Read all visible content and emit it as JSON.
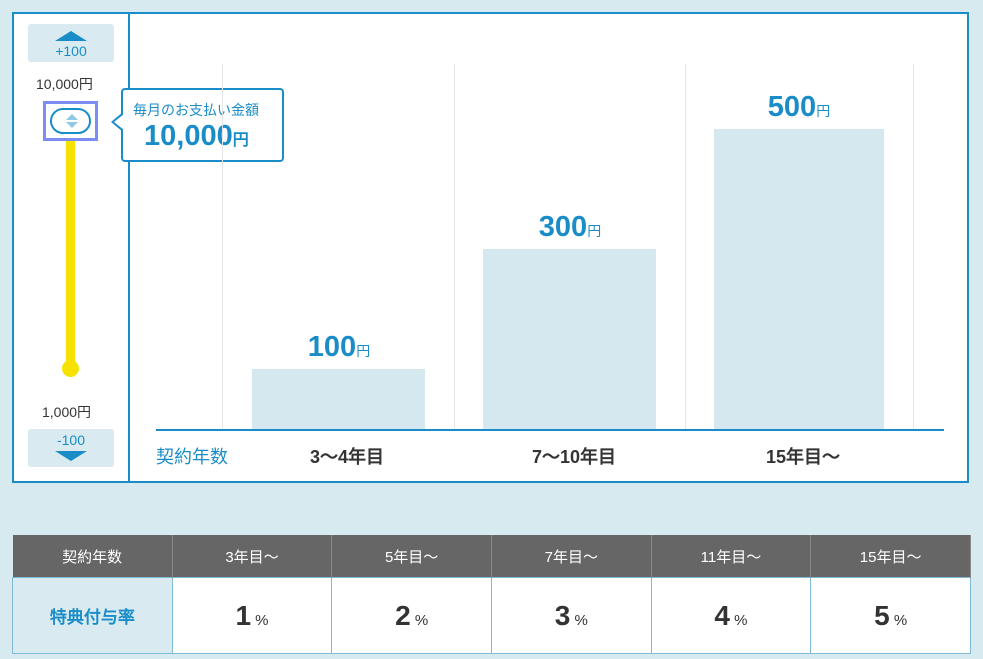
{
  "slider": {
    "increment_label": "+100",
    "decrement_label": "-100",
    "max_label": "10,000円",
    "min_label": "1,000円",
    "level": 1.0
  },
  "bubble": {
    "caption": "毎月のお支払い金額",
    "amount": "10,000",
    "unit": "円"
  },
  "chart_data": {
    "type": "bar",
    "xlabel": "契約年数",
    "categories": [
      "3〜4年目",
      "7〜10年目",
      "15年目〜"
    ],
    "values": [
      100,
      300,
      500
    ],
    "value_labels": [
      "100",
      "300",
      "500"
    ],
    "unit": "円",
    "ylim": [
      0,
      600
    ]
  },
  "rates_table": {
    "header_label": "契約年数",
    "row_label": "特典付与率",
    "columns": [
      "3年目〜",
      "5年目〜",
      "7年目〜",
      "11年目〜",
      "15年目〜"
    ],
    "rates": [
      "1",
      "2",
      "3",
      "4",
      "5"
    ],
    "unit": "%"
  },
  "colors": {
    "accent": "#1a8dc8",
    "bar_fill": "#d6e8ef",
    "slider_track": "#f6e100",
    "background": "#d7eaf0",
    "table_header": "#666666"
  }
}
